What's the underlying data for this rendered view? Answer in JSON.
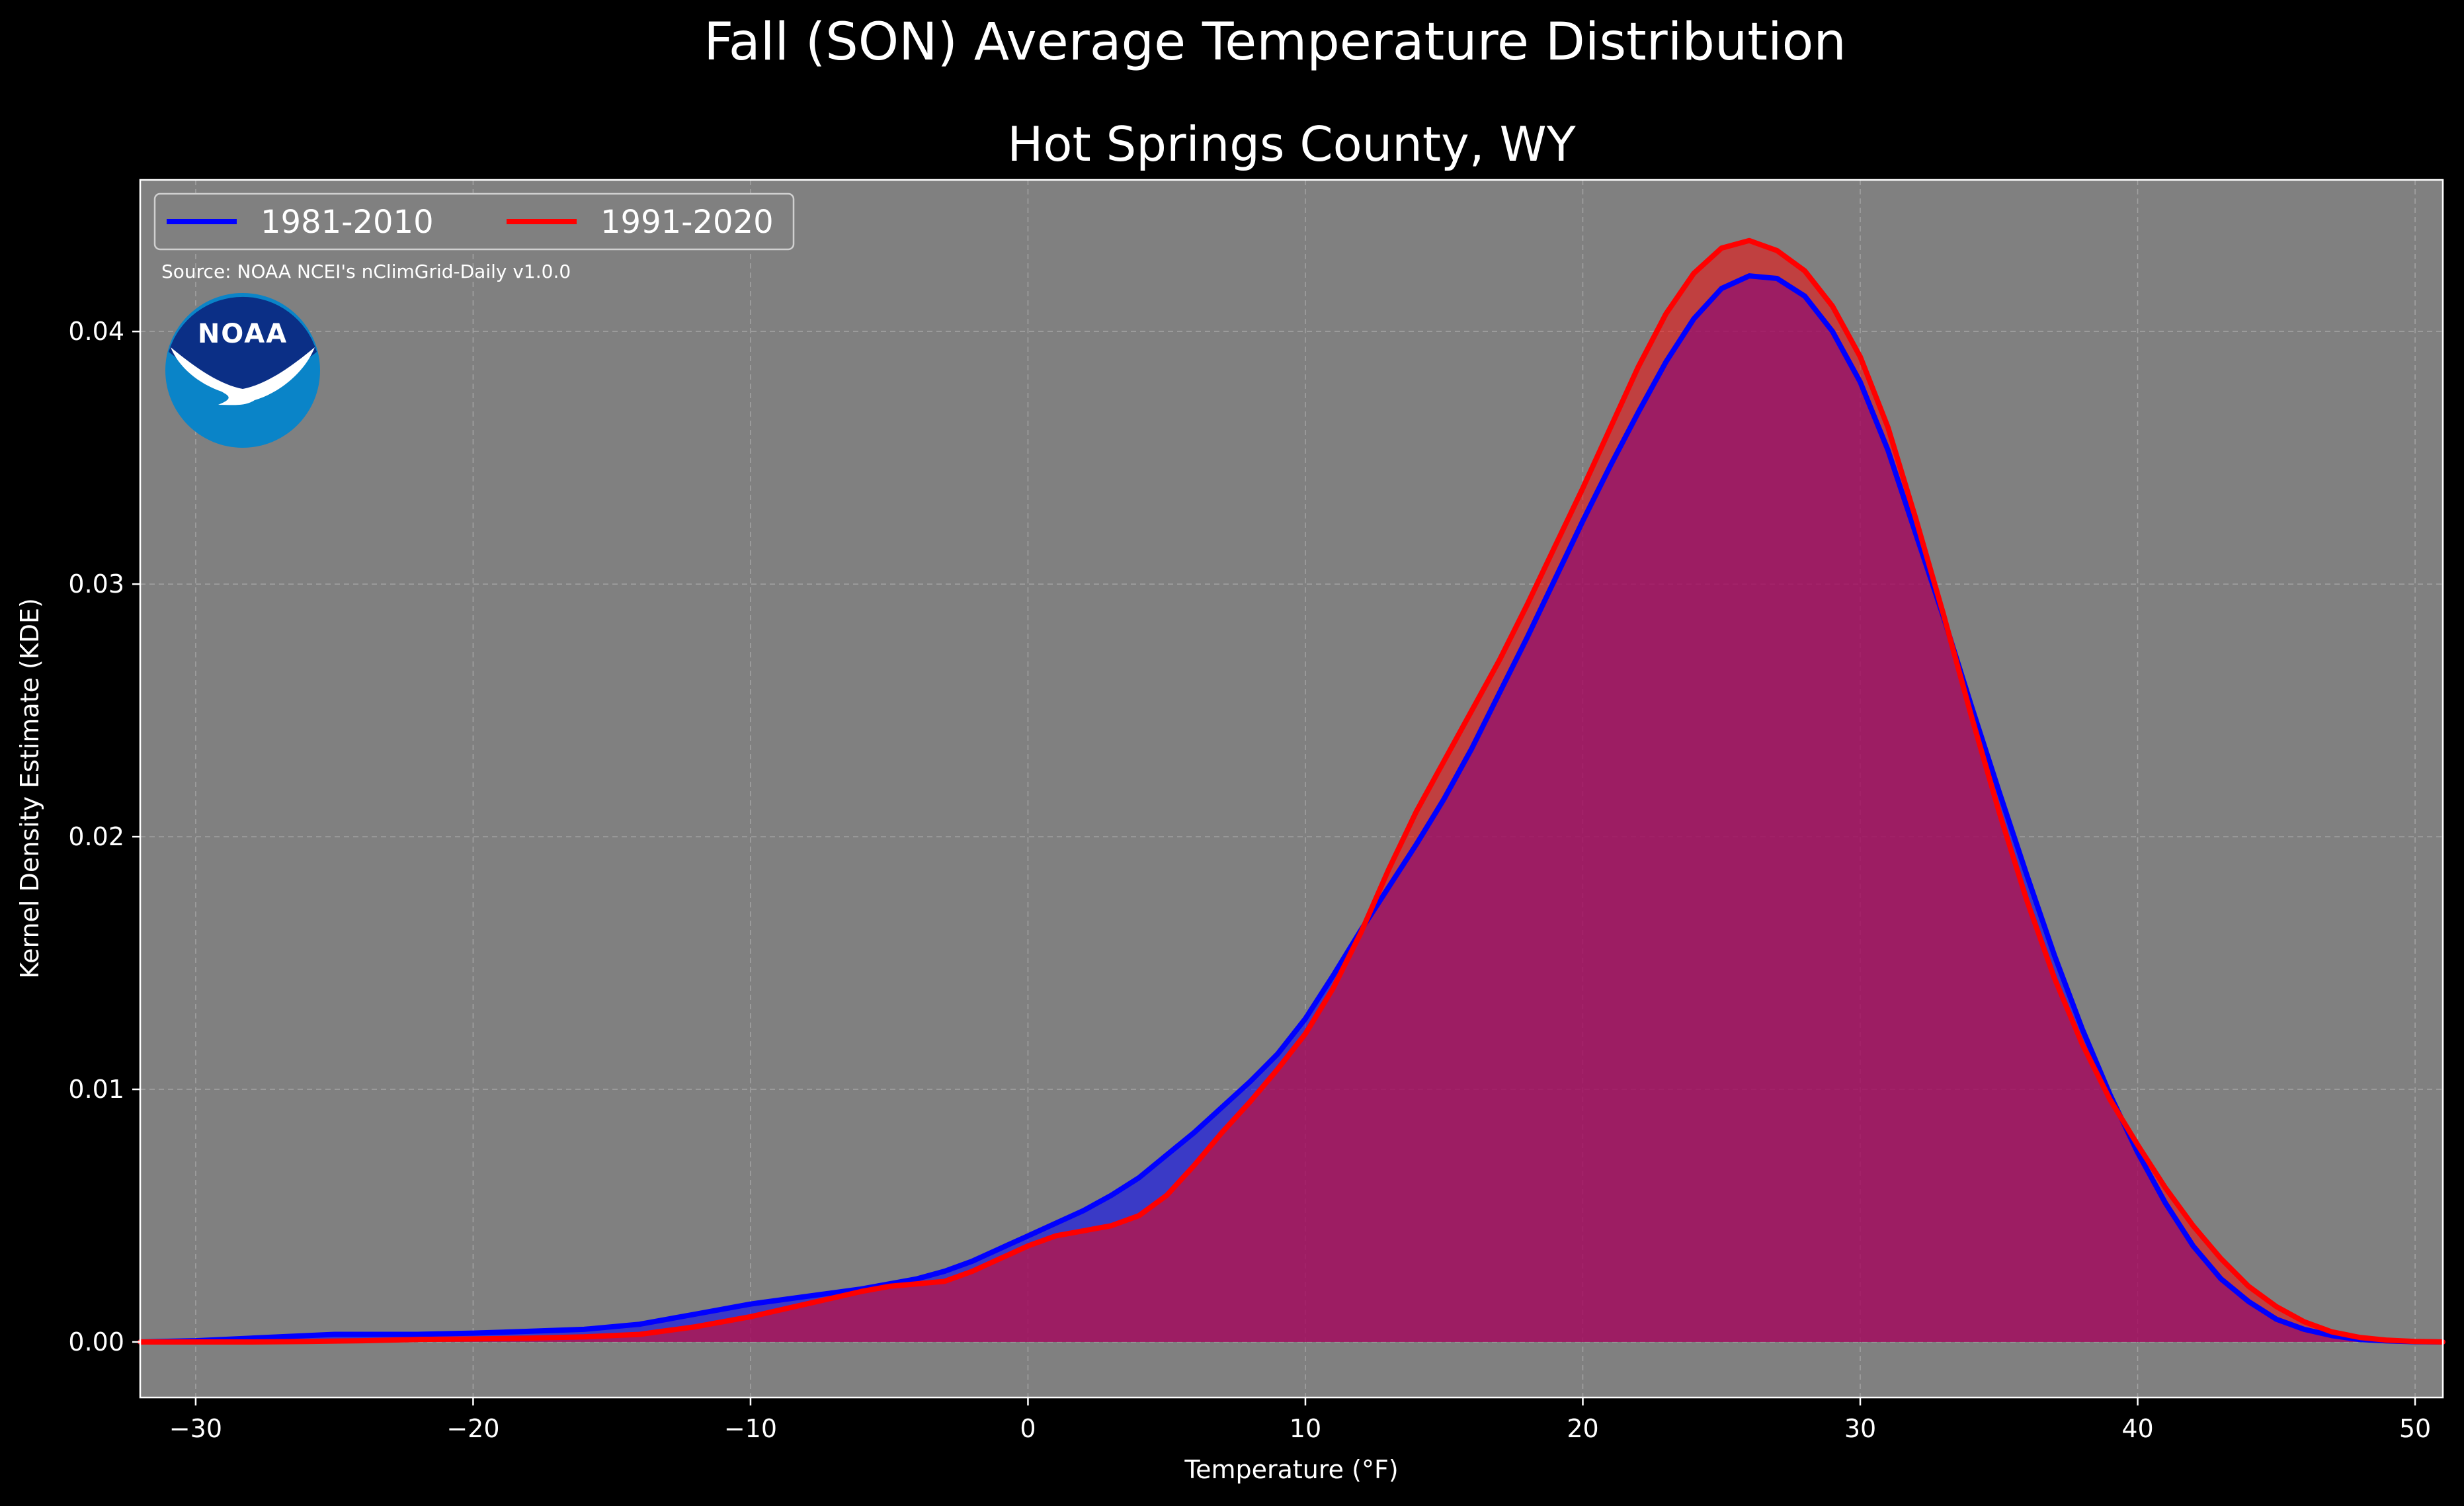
{
  "title": "Fall (SON) Average Temperature Distribution",
  "subtitle": "Hot Springs County, WY",
  "source": "Source: NOAA NCEI's nClimGrid-Daily v1.0.0",
  "logo_text": "NOAA",
  "colors": {
    "background": "#000000",
    "plot_background": "#808080",
    "series_1": "#0000ff",
    "series_2": "#ff0000",
    "overlap_fill": "#9c1f5c",
    "grid": "#b0b0b0",
    "logo_outer": "#0a84c8",
    "logo_inner": "#0b2f86"
  },
  "chart_data": {
    "type": "area",
    "title": "Fall (SON) Average Temperature Distribution",
    "subtitle": "Hot Springs County, WY",
    "xlabel": "Temperature ($^\\circ$F)",
    "xlabel_display": "Temperature (°F)",
    "ylabel": "Kernel Density Estimate (KDE)",
    "xlim": [
      -32,
      51
    ],
    "ylim": [
      -0.0022,
      0.046
    ],
    "xticks": [
      -30,
      -20,
      -10,
      0,
      10,
      20,
      30,
      40,
      50
    ],
    "xtick_labels": [
      "−30",
      "−20",
      "−10",
      "0",
      "10",
      "20",
      "30",
      "40",
      "50"
    ],
    "yticks": [
      0.0,
      0.01,
      0.02,
      0.03,
      0.04
    ],
    "ytick_labels": [
      "0.00",
      "0.01",
      "0.02",
      "0.03",
      "0.04"
    ],
    "grid": true,
    "legend_position": "upper-left",
    "series": [
      {
        "name": "1981-2010",
        "color": "#0000ff",
        "x": [
          -32,
          -30,
          -28,
          -26,
          -25,
          -24,
          -22,
          -20,
          -18,
          -16,
          -14,
          -12,
          -10,
          -8,
          -6,
          -4,
          -3,
          -2,
          -1,
          0,
          1,
          2,
          3,
          4,
          5,
          6,
          7,
          8,
          9,
          10,
          11,
          12,
          13,
          14,
          15,
          16,
          17,
          18,
          19,
          20,
          21,
          22,
          23,
          24,
          25,
          26,
          27,
          28,
          29,
          30,
          31,
          32,
          33,
          34,
          35,
          36,
          37,
          38,
          39,
          40,
          41,
          42,
          43,
          44,
          45,
          46,
          47,
          48,
          49,
          50,
          51
        ],
        "y": [
          0.0,
          5e-05,
          0.00015,
          0.00025,
          0.0003,
          0.0003,
          0.0003,
          0.00035,
          0.00042,
          0.0005,
          0.0007,
          0.0011,
          0.0015,
          0.0018,
          0.0021,
          0.0025,
          0.0028,
          0.0032,
          0.0037,
          0.0042,
          0.0047,
          0.0052,
          0.0058,
          0.0065,
          0.0074,
          0.0083,
          0.0093,
          0.0103,
          0.0114,
          0.0128,
          0.0145,
          0.0163,
          0.018,
          0.0197,
          0.0215,
          0.0235,
          0.0257,
          0.0279,
          0.0302,
          0.0325,
          0.0347,
          0.0368,
          0.0388,
          0.0405,
          0.0417,
          0.0422,
          0.0421,
          0.0414,
          0.04,
          0.038,
          0.0353,
          0.032,
          0.0287,
          0.0252,
          0.0218,
          0.0185,
          0.0153,
          0.0124,
          0.0098,
          0.0075,
          0.0055,
          0.0038,
          0.0025,
          0.0016,
          0.0009,
          0.0005,
          0.00025,
          0.0001,
          4e-05,
          1e-05,
          0.0
        ]
      },
      {
        "name": "1991-2020",
        "color": "#ff0000",
        "x": [
          -32,
          -30,
          -28,
          -26,
          -24,
          -22,
          -20,
          -18,
          -16,
          -14,
          -12,
          -10,
          -8,
          -6,
          -5,
          -4,
          -3,
          -2,
          -1,
          0,
          1,
          2,
          3,
          4,
          5,
          6,
          7,
          8,
          9,
          10,
          11,
          12,
          13,
          14,
          15,
          16,
          17,
          18,
          19,
          20,
          21,
          22,
          23,
          24,
          25,
          26,
          27,
          28,
          29,
          30,
          31,
          32,
          33,
          34,
          35,
          36,
          37,
          38,
          39,
          40,
          41,
          42,
          43,
          44,
          45,
          46,
          47,
          48,
          49,
          50,
          51
        ],
        "y": [
          0.0,
          0.0,
          0.0,
          2e-05,
          5e-05,
          0.0001,
          0.00012,
          0.00015,
          0.0002,
          0.0003,
          0.0006,
          0.001,
          0.0015,
          0.002,
          0.0022,
          0.0023,
          0.0024,
          0.0028,
          0.0033,
          0.0038,
          0.0042,
          0.0044,
          0.0046,
          0.005,
          0.0058,
          0.007,
          0.0083,
          0.0095,
          0.0108,
          0.0122,
          0.014,
          0.0162,
          0.0187,
          0.021,
          0.023,
          0.025,
          0.027,
          0.0292,
          0.0315,
          0.0338,
          0.0362,
          0.0386,
          0.0407,
          0.0423,
          0.0433,
          0.0436,
          0.0432,
          0.0424,
          0.041,
          0.039,
          0.0362,
          0.0326,
          0.0288,
          0.0248,
          0.021,
          0.0175,
          0.0144,
          0.0118,
          0.0096,
          0.0078,
          0.0061,
          0.0046,
          0.0033,
          0.0022,
          0.0014,
          0.0008,
          0.0004,
          0.00018,
          7e-05,
          2e-05,
          0.0
        ]
      }
    ]
  }
}
